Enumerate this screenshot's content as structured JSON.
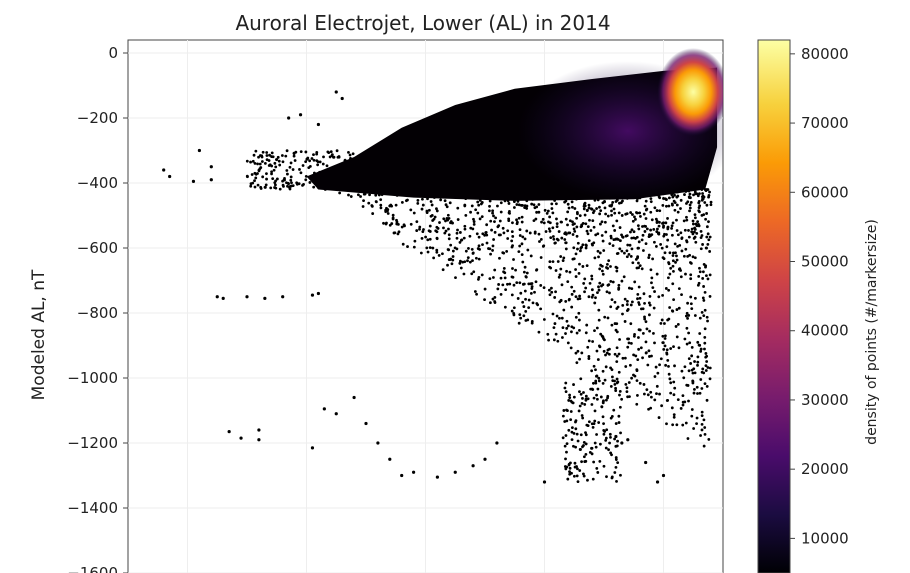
{
  "chart_data": {
    "type": "scatter",
    "title": "Auroral Electrojet, Lower (AL) in 2014",
    "xlabel": "",
    "ylabel": "Modeled AL, nT",
    "y_ticks": [
      "0",
      "−200",
      "−400",
      "−600",
      "−800",
      "−1000",
      "−1200",
      "−1400",
      "−1600"
    ],
    "y_tick_values": [
      0,
      -200,
      -400,
      -600,
      -800,
      -1000,
      -1200,
      -1400,
      -1600
    ],
    "ylim": [
      -1600,
      40
    ],
    "x_ticks_visible": false,
    "grid": true,
    "colormap": "inferno",
    "colorbar": {
      "label": "density of points (#/markersize)",
      "ticks": [
        "10000",
        "20000",
        "30000",
        "40000",
        "50000",
        "60000",
        "70000",
        "80000"
      ],
      "tick_values": [
        10000,
        20000,
        30000,
        40000,
        50000,
        60000,
        70000,
        80000
      ],
      "range": [
        5000,
        82000
      ],
      "colors": [
        "#000004",
        "#1b0c41",
        "#4a0c6b",
        "#781c6d",
        "#a52c60",
        "#cf4446",
        "#ed6925",
        "#fb9b06",
        "#f7d13d",
        "#fcffa4"
      ]
    },
    "density_peak": {
      "x": 0.95,
      "y": -120,
      "density": 80000
    },
    "dense_core": {
      "x_range": [
        0.3,
        0.99
      ],
      "y_range": [
        -460,
        -60
      ]
    },
    "outlier_points": [
      [
        0.06,
        -360
      ],
      [
        0.07,
        -380
      ],
      [
        0.12,
        -300
      ],
      [
        0.14,
        -350
      ],
      [
        0.14,
        -390
      ],
      [
        0.11,
        -395
      ],
      [
        0.15,
        -750
      ],
      [
        0.16,
        -755
      ],
      [
        0.2,
        -750
      ],
      [
        0.23,
        -755
      ],
      [
        0.26,
        -750
      ],
      [
        0.31,
        -745
      ],
      [
        0.32,
        -740
      ],
      [
        0.17,
        -1165
      ],
      [
        0.19,
        -1185
      ],
      [
        0.22,
        -1160
      ],
      [
        0.22,
        -1190
      ],
      [
        0.31,
        -1215
      ],
      [
        0.33,
        -1095
      ],
      [
        0.35,
        -1110
      ],
      [
        0.38,
        -1060
      ],
      [
        0.4,
        -1140
      ],
      [
        0.42,
        -1200
      ],
      [
        0.44,
        -1250
      ],
      [
        0.46,
        -1300
      ],
      [
        0.48,
        -1290
      ],
      [
        0.52,
        -1305
      ],
      [
        0.55,
        -1290
      ],
      [
        0.58,
        -1270
      ],
      [
        0.6,
        -1250
      ],
      [
        0.62,
        -1200
      ],
      [
        0.7,
        -1320
      ],
      [
        0.82,
        -1180
      ],
      [
        0.83,
        -1200
      ],
      [
        0.84,
        -1190
      ],
      [
        0.87,
        -1260
      ],
      [
        0.89,
        -1320
      ],
      [
        0.9,
        -1300
      ],
      [
        0.27,
        -200
      ],
      [
        0.29,
        -190
      ],
      [
        0.32,
        -220
      ],
      [
        0.35,
        -120
      ],
      [
        0.36,
        -140
      ]
    ]
  }
}
